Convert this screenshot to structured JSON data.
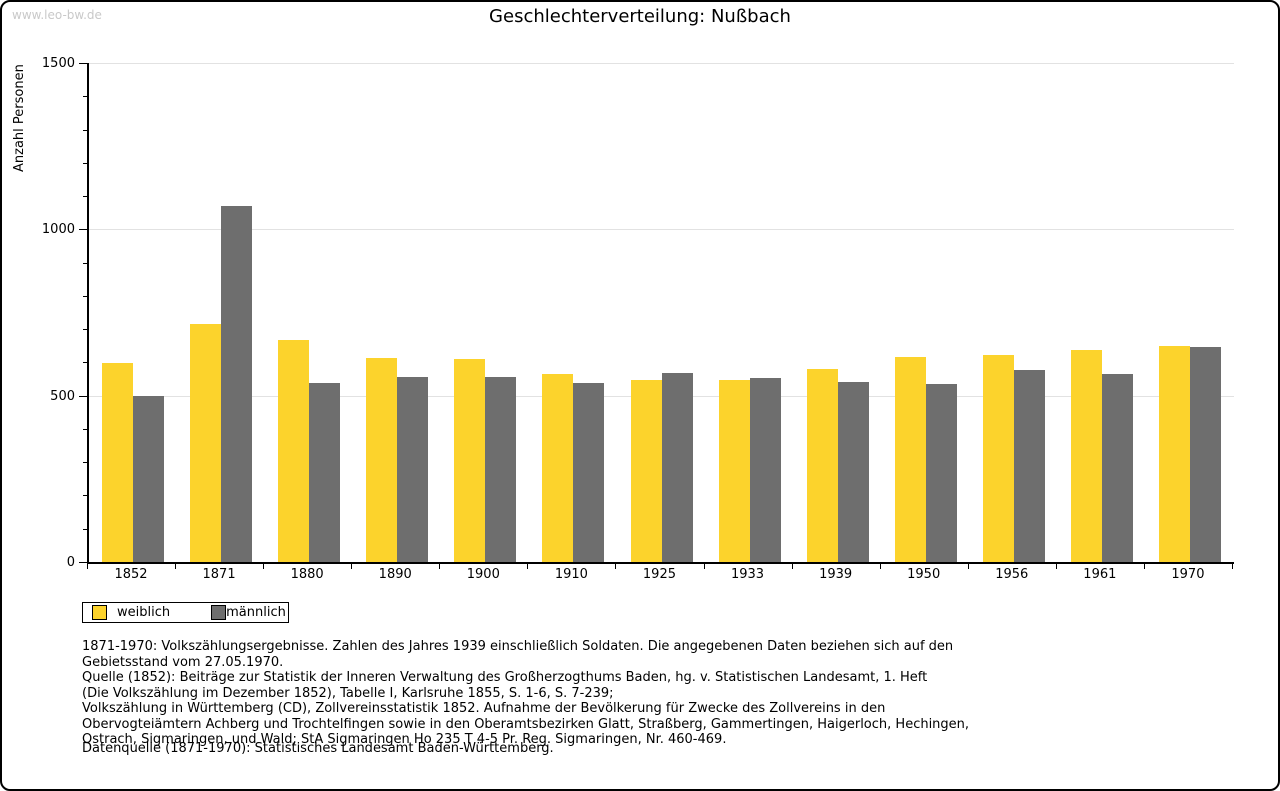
{
  "watermark": "www.leo-bw.de",
  "chart_data": {
    "type": "bar",
    "title": "Geschlechterverteilung: Nußbach",
    "xlabel": "",
    "ylabel": "Anzahl Personen",
    "ylim": [
      0,
      1500
    ],
    "y_major_ticks": [
      0,
      500,
      1000,
      1500
    ],
    "y_minor_step": 100,
    "grid": "horizontal lines at 500, 1000, 1500",
    "legend_position": "bottom-left below plot",
    "categories": [
      "1852",
      "1871",
      "1880",
      "1890",
      "1900",
      "1910",
      "1925",
      "1933",
      "1939",
      "1950",
      "1956",
      "1961",
      "1970"
    ],
    "series": [
      {
        "name": "weiblich",
        "color": "#FCD32C",
        "values": [
          598,
          716,
          668,
          613,
          610,
          566,
          548,
          547,
          580,
          617,
          623,
          637,
          650
        ]
      },
      {
        "name": "männlich",
        "color": "#6E6E6E",
        "values": [
          500,
          1071,
          537,
          555,
          557,
          537,
          569,
          554,
          541,
          535,
          578,
          565,
          645
        ]
      }
    ]
  },
  "legend": {
    "items": [
      {
        "label": "weiblich",
        "color": "#FCD32C"
      },
      {
        "label": "männlich",
        "color": "#6E6E6E"
      }
    ]
  },
  "footnotes": [
    "1871-1970: Volkszählungsergebnisse. Zahlen des Jahres 1939 einschließlich Soldaten. Die angegebenen Daten beziehen sich auf den",
    "Gebietsstand vom 27.05.1970.",
    "Quelle (1852): Beiträge zur Statistik der Inneren Verwaltung des Großherzogthums Baden, hg. v. Statistischen Landesamt, 1. Heft",
    "(Die Volkszählung im Dezember 1852), Tabelle I, Karlsruhe 1855, S. 1-6, S. 7-239;",
    "Volkszählung in Württemberg (CD), Zollvereinsstatistik 1852. Aufnahme der Bevölkerung für Zwecke des Zollvereins in den",
    "Obervogteiämtern Achberg und Trochtelfingen sowie in den Oberamtsbezirken Glatt, Straßberg, Gammertingen, Haigerloch, Hechingen,",
    "Ostrach, Sigmaringen, und Wald; StA Sigmaringen Ho 235 T 4-5 Pr. Reg. Sigmaringen, Nr. 460-469."
  ],
  "datasource": "Datenquelle (1871-1970): Statistisches Landesamt Baden-Württemberg."
}
